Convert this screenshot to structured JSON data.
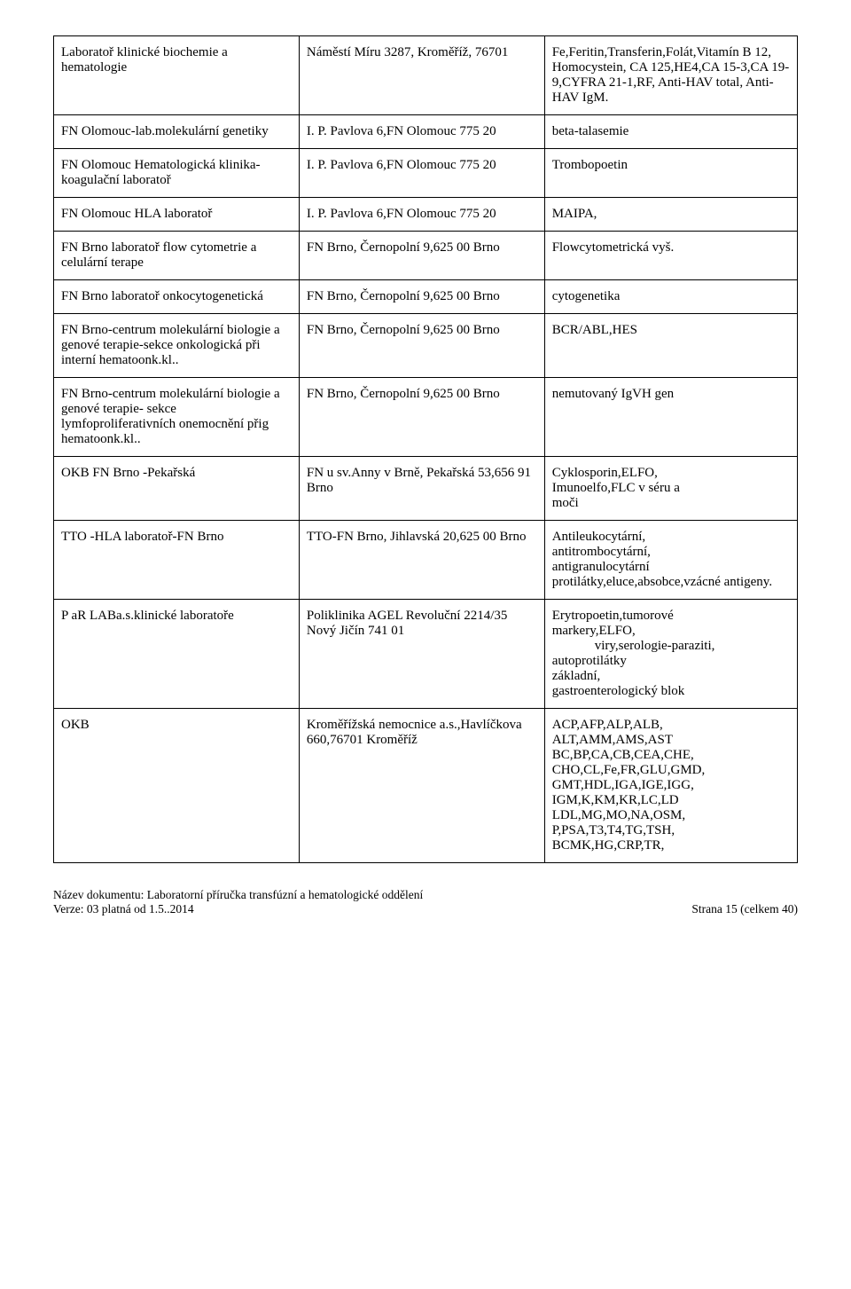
{
  "table": {
    "columns": [
      "c1",
      "c2",
      "c3"
    ],
    "rows": [
      {
        "c1": "Laboratoř klinické biochemie a hematologie",
        "c2": "Náměstí Míru 3287, Kroměříž, 76701",
        "c3": "Fe,Feritin,Transferin,Folát,Vitamín B 12, Homocystein, CA 125,HE4,CA 15-3,CA 19-9,CYFRA 21-1,RF, Anti-HAV total, Anti-HAV IgM."
      },
      {
        "c1": "FN Olomouc-lab.molekulární genetiky",
        "c2": "I. P. Pavlova 6,FN Olomouc 775 20",
        "c3": "beta-talasemie"
      },
      {
        "c1": "FN Olomouc Hematologická klinika-koagulační laboratoř",
        "c2": "I. P. Pavlova 6,FN Olomouc 775 20",
        "c3": "Trombopoetin"
      },
      {
        "c1": "FN Olomouc HLA laboratoř",
        "c2": "I. P. Pavlova 6,FN Olomouc 775 20",
        "c3": "MAIPA,"
      },
      {
        "c1": "FN Brno laboratoř flow cytometrie a celulární terape",
        "c2": "FN Brno, Černopolní 9,625 00 Brno",
        "c3": "Flowcytometrická vyš."
      },
      {
        "c1": "FN Brno laboratoř onkocytogenetická",
        "c2": "FN Brno, Černopolní 9,625 00 Brno",
        "c3": "cytogenetika"
      },
      {
        "c1": "FN Brno-centrum molekulární biologie a genové terapie-sekce onkologická při interní hematoonk.kl..",
        "c2": "FN Brno, Černopolní 9,625 00 Brno",
        "c3": "BCR/ABL,HES"
      },
      {
        "c1": "FN Brno-centrum molekulární biologie a genové terapie- sekce lymfoproliferativních onemocnění přig hematoonk.kl..",
        "c2": "FN Brno, Černopolní 9,625 00 Brno",
        "c3": "nemutovaný IgVH gen"
      },
      {
        "c1": "OKB FN Brno -Pekařská",
        "c2_lines": [
          "FN u sv.Anny v Brně, Pekařská 53,656 91",
          "Brno"
        ],
        "c3_lines": [
          "Cyklosporin,ELFO,",
          "Imunoelfo,FLC v séru a",
          "moči"
        ]
      },
      {
        "c1": "TTO -HLA laboratoř-FN Brno",
        "c2_lines": [
          "TTO-FN Brno, Jihlavská 20,625 00 Brno"
        ],
        "c3_lines": [
          "Antileukocytární,",
          "antitrombocytární,",
          "antigranulocytární protilátky,eluce,absobce,vzácné antigeny."
        ]
      },
      {
        "c1": "P aR LABa.s.klinické laboratoře",
        "c2_lines": [
          "Poliklinika AGEL Revoluční 2214/35",
          "Nový Jičín 741 01"
        ],
        "c3_indent": true,
        "c3_lines": [
          "Erytropoetin,tumorové",
          "markery,ELFO,",
          "__INDENT__viry,serologie-paraziti,",
          "autoprotilátky",
          "základní,",
          "gastroenterologický blok"
        ]
      },
      {
        "c1": "OKB",
        "c2_lines": [
          "Kroměřížská nemocnice a.s.,Havlíčkova 660,76701 Kroměříž"
        ],
        "c3_lines": [
          "ACP,AFP,ALP,ALB,",
          "ALT,AMM,AMS,AST",
          "BC,BP,CA,CB,CEA,CHE,",
          "CHO,CL,Fe,FR,GLU,GMD,",
          "GMT,HDL,IGA,IGE,IGG,",
          "IGM,K,KM,KR,LC,LD",
          "LDL,MG,MO,NA,OSM,",
          "P,PSA,T3,T4,TG,TSH,",
          "BCMK,HG,CRP,TR,"
        ]
      }
    ]
  },
  "footer": {
    "doc_name_label": "Název dokumentu: Laboratorní příručka transfúzní a hematologické oddělení",
    "version_label": "Verze: 03 platná od 1.5..2014",
    "page_label": "Strana 15 (celkem 40)"
  }
}
